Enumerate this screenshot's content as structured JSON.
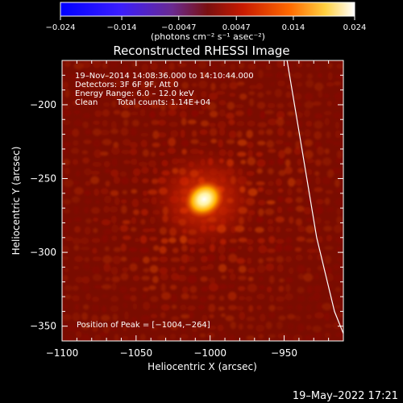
{
  "chart_data": {
    "type": "heatmap",
    "title": "Reconstructed RHESSI Image",
    "xlabel": "Heliocentric X (arcsec)",
    "ylabel": "Heliocentric Y (arcsec)",
    "xlim": [
      -1100,
      -910
    ],
    "ylim": [
      -360,
      -170
    ],
    "x_ticks": [
      -1100,
      -1050,
      -1000,
      -950
    ],
    "x_tick_labels": [
      "−1100",
      "−1050",
      "−1000",
      "−950"
    ],
    "y_ticks": [
      -200,
      -250,
      -300,
      -350
    ],
    "y_tick_labels": [
      "−200",
      "−250",
      "−300",
      "−350"
    ],
    "colorbar": {
      "range": [
        -0.024,
        0.024
      ],
      "ticks": [
        -0.024,
        -0.014,
        -0.0047,
        0.0047,
        0.014,
        0.024
      ],
      "tick_labels": [
        "−0.024",
        "−0.014",
        "−0.0047",
        "0.0047",
        "0.014",
        "0.024"
      ],
      "unit_label": "(photons cm⁻² s⁻¹ asec⁻²)"
    },
    "annotations": {
      "time_range": "19–Nov–2014 14:08:36.000 to 14:10:44.000",
      "detectors": "Detectors: 3F 6F 9F, Att 0",
      "energy_range": "Energy Range: 6.0 – 12.0 keV",
      "algorithm": "Clean",
      "total_counts": "Total counts: 1.14E+04",
      "peak_position": "Position of Peak = [−1004,−264]"
    },
    "peak": {
      "x": -1004,
      "y": -264
    },
    "limb_curve": [
      [
        -948,
        -170
      ],
      [
        -938,
        -230
      ],
      [
        -928,
        -290
      ],
      [
        -916,
        -340
      ],
      [
        -910,
        -355
      ]
    ],
    "grid": false
  },
  "footer": {
    "date": "19–May–2022 17:21"
  },
  "colors": {
    "background": "#000000",
    "text": "#ffffff",
    "limb": "#ffffff"
  }
}
